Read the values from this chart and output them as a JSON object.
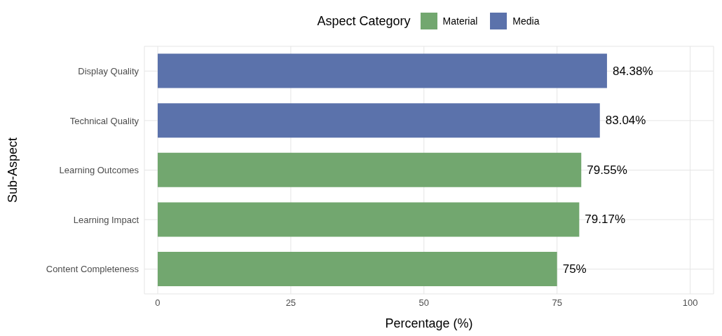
{
  "chart_data": {
    "type": "bar",
    "orientation": "horizontal",
    "stacked": true,
    "xlabel": "Percentage (%)",
    "ylabel": "Sub-Aspect",
    "legend_title": "Aspect Category",
    "legend": "top",
    "grid": true,
    "categories": [
      "Display Quality",
      "Technical Quality",
      "Learning Outcomes",
      "Learning Impact",
      "Content Completeness"
    ],
    "series": [
      {
        "name": "Material",
        "color": "#72a76f",
        "values": [
          null,
          null,
          79.55,
          79.17,
          75
        ],
        "value_labels": [
          null,
          null,
          "79.55%",
          "79.17%",
          "75%"
        ]
      },
      {
        "name": "Media",
        "color": "#5b72ab",
        "values": [
          84.38,
          83.04,
          null,
          null,
          null
        ],
        "value_labels": [
          "84.38%",
          "83.04%",
          null,
          null,
          null
        ]
      }
    ],
    "xlim": [
      -2.5,
      104.4
    ],
    "xticks": [
      0,
      25,
      50,
      75,
      100
    ]
  }
}
